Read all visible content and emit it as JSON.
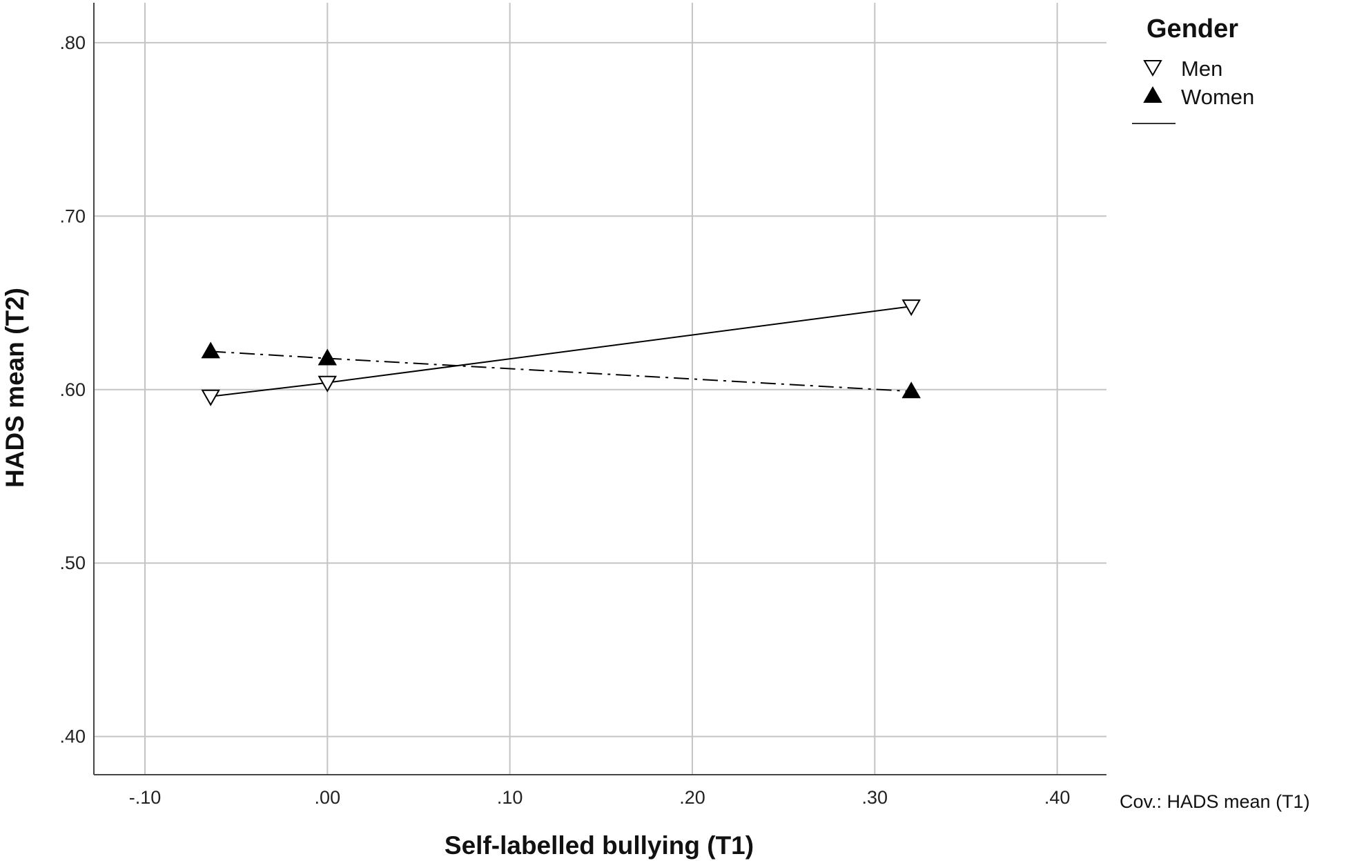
{
  "chart_data": {
    "type": "line",
    "xlabel": "Self-labelled bullying (T1)",
    "ylabel": "HADS mean (T2)",
    "xlim": [
      -0.128,
      0.427
    ],
    "ylim": [
      0.378,
      0.823
    ],
    "x_ticks": [
      -0.1,
      0.0,
      0.1,
      0.2,
      0.3,
      0.4
    ],
    "x_tick_labels": [
      "-.10",
      ".00",
      ".10",
      ".20",
      ".30",
      ".40"
    ],
    "y_ticks": [
      0.4,
      0.5,
      0.6,
      0.7,
      0.8
    ],
    "y_tick_labels": [
      ".40",
      ".50",
      ".60",
      ".70",
      ".80"
    ],
    "grid": true,
    "legend_title": "Gender",
    "legend_position": "top-right",
    "series": [
      {
        "name": "Men",
        "marker": "open-down-triangle",
        "line_style": "solid",
        "color": "#000000",
        "x": [
          -0.064,
          0.0,
          0.32
        ],
        "y": [
          0.596,
          0.604,
          0.648
        ]
      },
      {
        "name": "Women",
        "marker": "filled-up-triangle",
        "line_style": "dash-dot",
        "color": "#000000",
        "x": [
          -0.064,
          0.0,
          0.32
        ],
        "y": [
          0.622,
          0.618,
          0.599
        ]
      }
    ],
    "footnote": "Cov.: HADS mean (T1)"
  }
}
